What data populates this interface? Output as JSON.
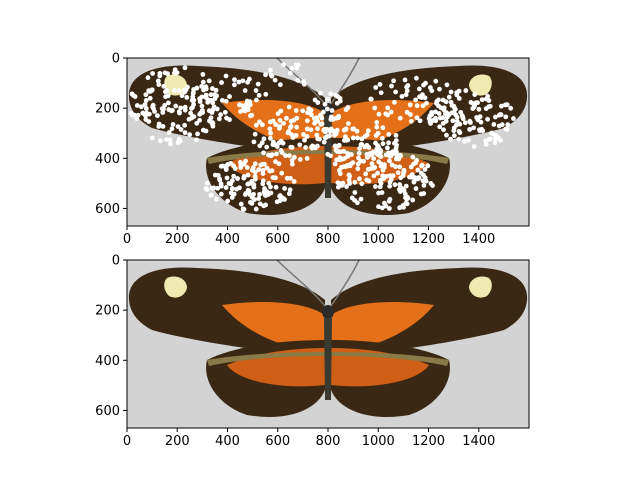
{
  "chart_data": [
    {
      "type": "image",
      "title": "",
      "xlabel": "",
      "ylabel": "",
      "xlim": [
        0,
        1600
      ],
      "ylim": [
        670,
        0
      ],
      "xticks": [
        0,
        200,
        400,
        600,
        800,
        1000,
        1200,
        1400
      ],
      "yticks": [
        0,
        200,
        400,
        600
      ],
      "image": "butterfly wing specimen",
      "overlay": "white scatter points (keypoints) over wing pattern"
    },
    {
      "type": "image",
      "title": "",
      "xlabel": "",
      "ylabel": "",
      "xlim": [
        0,
        1600
      ],
      "ylim": [
        670,
        0
      ],
      "xticks": [
        0,
        200,
        400,
        600,
        800,
        1000,
        1200,
        1400
      ],
      "yticks": [
        0,
        200,
        400,
        600
      ],
      "image": "butterfly wing specimen",
      "overlay": ""
    }
  ],
  "colors": {
    "background": "#d3d3d3",
    "wing_dark": "#3a2814",
    "wing_orange": "#e4701a",
    "spot_yellow": "#f0eab0",
    "points": "#ffffff"
  }
}
